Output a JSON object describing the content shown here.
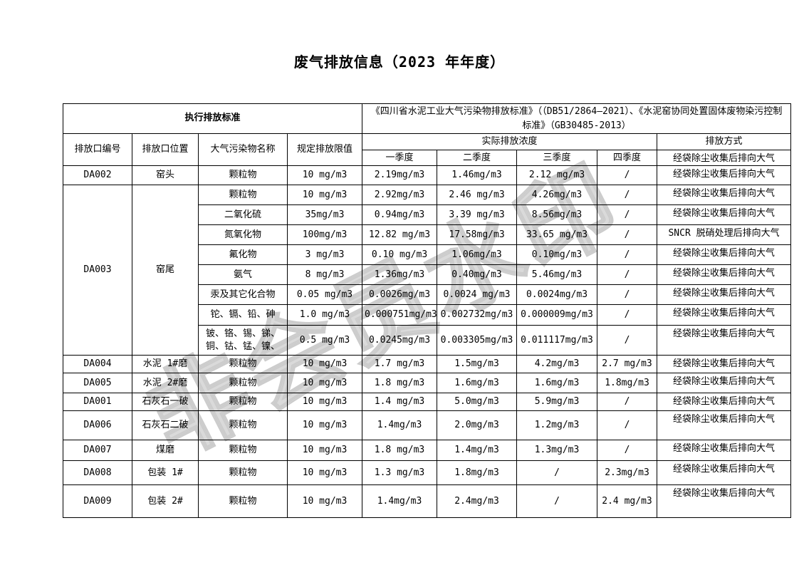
{
  "title": "废气排放信息（2023 年年度）",
  "watermark_text": "非会员水印",
  "table": {
    "header": {
      "exec_standard": "执行排放标准",
      "standards": "《四川省水泥工业大气污染物排放标准》（（DB51/2864—2021）、《水泥窑协同处置固体废物染污控制标准》（GB30485-2013）",
      "outlet_id": "排放口编号",
      "outlet_location": "排放口位置",
      "pollutant_name": "大气污染物名称",
      "limit": "规定排放限值",
      "actual_concentration": "实际排放浓度",
      "quarters": [
        "一季度",
        "二季度",
        "三季度",
        "四季度"
      ],
      "emission_method": "排放方式",
      "quarter_row_method": "经袋除尘收集后排向大气"
    },
    "groups": [
      {
        "id": "DA002",
        "location": "窑头",
        "rows": [
          {
            "pollutant": "颗粒物",
            "limit": "10 mg/m3",
            "q1": "2.19mg/m3",
            "q2": "1.46mg/m3",
            "q3": "2.12 mg/m3",
            "q4": "/",
            "method": "经袋除尘收集后排向大气"
          }
        ]
      },
      {
        "id": "DA003",
        "location": "窑尾",
        "rows": [
          {
            "pollutant": "颗粒物",
            "limit": "10 mg/m3",
            "q1": "2.92mg/m3",
            "q2": "2.46 mg/m3",
            "q3": "4.26mg/m3",
            "q4": "/",
            "method": "经袋除尘收集后排向大气"
          },
          {
            "pollutant": "二氧化硫",
            "limit": "35mg/m3",
            "q1": "0.94mg/m3",
            "q2": "3.39 mg/m3",
            "q3": "8.56mg/m3",
            "q4": "/",
            "method": "经袋除尘收集后排向大气"
          },
          {
            "pollutant": "氮氧化物",
            "limit": "100mg/m3",
            "q1": "12.82 mg/m3",
            "q2": "17.58mg/m3",
            "q3": "33.65 mg/m3",
            "q4": "/",
            "method": "SNCR 脱硝处理后排向大气"
          },
          {
            "pollutant": "氟化物",
            "limit": "3 mg/m3",
            "q1": "0.10 mg/m3",
            "q2": "1.06mg/m3",
            "q3": "0.10mg/m3",
            "q4": "/",
            "method": "经袋除尘收集后排向大气"
          },
          {
            "pollutant": "氨气",
            "limit": "8 mg/m3",
            "q1": "1.36mg/m3",
            "q2": "0.40mg/m3",
            "q3": "5.46mg/m3",
            "q4": "/",
            "method": "经袋除尘收集后排向大气"
          },
          {
            "pollutant": "汞及其它化合物",
            "limit": "0.05 mg/m3",
            "q1": "0.0026mg/m3",
            "q2": "0.0024 mg/m3",
            "q3": "0.0024mg/m3",
            "q4": "/",
            "method": "经袋除尘收集后排向大气"
          },
          {
            "pollutant": "铊、镉、铅、砷",
            "limit": "1.0 mg/m3",
            "q1": "0.000751mg/m3",
            "q2": "0.002732mg/m3",
            "q3": "0.000009mg/m3",
            "q4": "/",
            "method": "经袋除尘收集后排向大气"
          },
          {
            "pollutant": "铍、铬、锡、锑、铜、钴、锰、镍、",
            "limit": "0.5 mg/m3",
            "q1": "0.0245mg/m3",
            "q2": "0.003305mg/m3",
            "q3": "0.011117mg/m3",
            "q4": "/",
            "method": "经袋除尘收集后排向大气"
          }
        ]
      },
      {
        "id": "DA004",
        "location": "水泥 1#磨",
        "rows": [
          {
            "pollutant": "颗粒物",
            "limit": "10 mg/m3",
            "q1": "1.7 mg/m3",
            "q2": "1.5mg/m3",
            "q3": "4.2mg/m3",
            "q4": "2.7 mg/m3",
            "method": "经袋除尘收集后排向大气"
          }
        ]
      },
      {
        "id": "DA005",
        "location": "水泥 2#磨",
        "rows": [
          {
            "pollutant": "颗粒物",
            "limit": "10 mg/m3",
            "q1": "1.8 mg/m3",
            "q2": "1.6mg/m3",
            "q3": "1.6mg/m3",
            "q4": "1.8mg/m3",
            "method": "经袋除尘收集后排向大气"
          }
        ]
      },
      {
        "id": "DA001",
        "location": "石灰石一破",
        "rows": [
          {
            "pollutant": "颗粒物",
            "limit": "10 mg/m3",
            "q1": "1.4 mg/m3",
            "q2": "5.0mg/m3",
            "q3": "5.9mg/m3",
            "q4": "/",
            "method": "经袋除尘收集后排向大气"
          }
        ]
      },
      {
        "id": "DA006",
        "location": "石灰石二破",
        "rows": [
          {
            "pollutant": "颗粒物",
            "limit": "10 mg/m3",
            "q1": "1.4mg/m3",
            "q2": "2.0mg/m3",
            "q3": "1.2mg/m3",
            "q4": "/",
            "method": "经袋除尘收集后排向大气"
          }
        ]
      },
      {
        "id": "DA007",
        "location": "煤磨",
        "rows": [
          {
            "pollutant": "颗粒物",
            "limit": "10 mg/m3",
            "q1": "1.8 mg/m3",
            "q2": "1.4mg/m3",
            "q3": "1.3mg/m3",
            "q4": "/",
            "method": "经袋除尘收集后排向大气"
          }
        ]
      },
      {
        "id": "DA008",
        "location": "包装 1#",
        "rows": [
          {
            "pollutant": "颗粒物",
            "limit": "10 mg/m3",
            "q1": "1.3 mg/m3",
            "q2": "1.8mg/m3",
            "q3": "/",
            "q4": "2.3mg/m3",
            "method": "经袋除尘收集后排向大气"
          }
        ]
      },
      {
        "id": "DA009",
        "location": "包装 2#",
        "rows": [
          {
            "pollutant": "颗粒物",
            "limit": "10 mg/m3",
            "q1": "1.4mg/m3",
            "q2": "2.4mg/m3",
            "q3": "/",
            "q4": "2.4 mg/m3",
            "method": "经袋除尘收集后排向大气"
          }
        ]
      }
    ]
  }
}
